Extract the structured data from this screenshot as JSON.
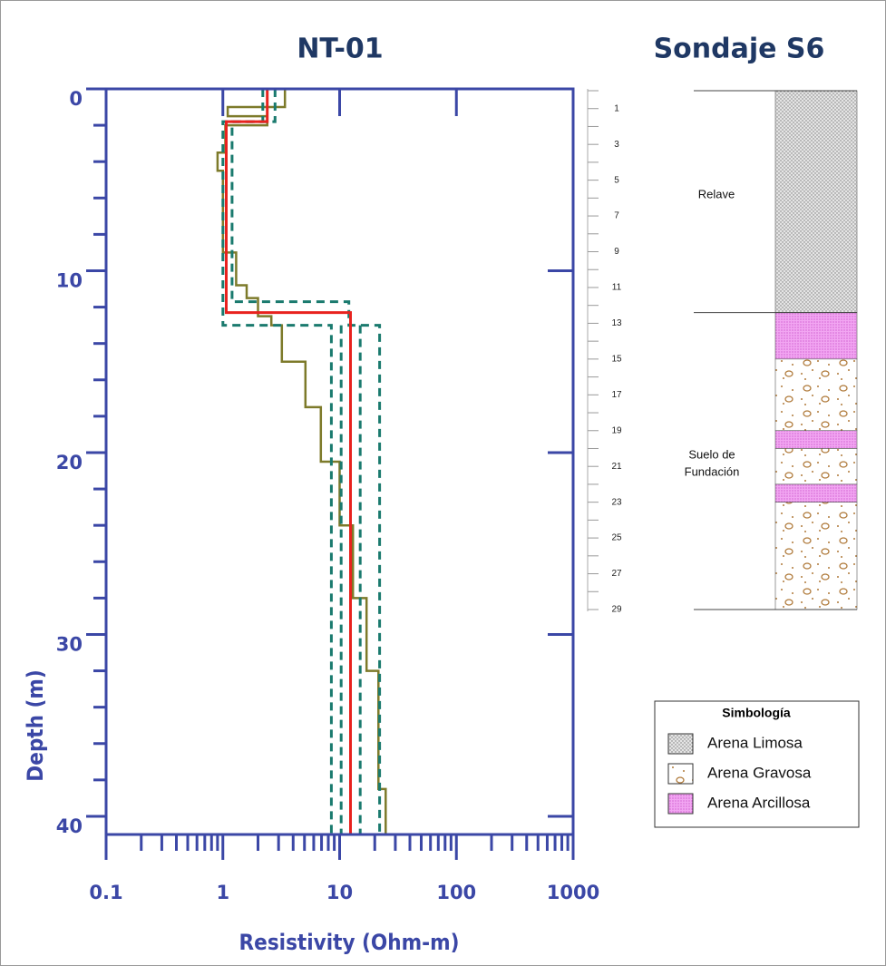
{
  "chart_data": {
    "type": "line",
    "title": "NT-01",
    "xlabel": "Resistivity (Ohm-m)",
    "ylabel": "Depth (m)",
    "xscale": "log",
    "xlim": [
      0.1,
      1000
    ],
    "ylim": [
      0,
      41
    ],
    "y_inverted": true,
    "xticks": [
      0.1,
      1,
      10,
      100,
      1000
    ],
    "xminorticks": [
      0.2,
      0.3,
      0.4,
      0.5,
      0.6,
      0.7,
      0.8,
      0.9,
      2,
      3,
      4,
      5,
      6,
      7,
      8,
      9,
      20,
      30,
      40,
      50,
      60,
      70,
      80,
      90,
      200,
      300,
      400,
      500,
      600,
      700,
      800,
      900
    ],
    "yticks": [
      0,
      10,
      20,
      30,
      40
    ],
    "yminorticks": [
      2,
      4,
      6,
      8,
      12,
      14,
      16,
      18,
      22,
      24,
      26,
      28,
      32,
      34,
      36,
      38
    ],
    "axis_color": "#3b47a6",
    "series": [
      {
        "color": "#7d7a2a",
        "style": "solid",
        "width": 2.5,
        "x": [
          3.4,
          3.4,
          1.1,
          1.1,
          2.4,
          2.4,
          1.05,
          1.05,
          0.9,
          0.9,
          1.0,
          1.0,
          1.3,
          1.3,
          1.6,
          1.6,
          2.0,
          2.0,
          2.6,
          2.6,
          3.2,
          3.2,
          5.1,
          5.1,
          6.9,
          6.9,
          10,
          10,
          13,
          13,
          17,
          17,
          21.5,
          21.5,
          24.8,
          24.8
        ],
        "values": [
          0,
          1,
          1,
          1.5,
          1.5,
          2,
          2,
          3.5,
          3.5,
          4.5,
          4.5,
          9,
          9,
          10.8,
          10.8,
          11.5,
          11.5,
          12.5,
          12.5,
          13,
          13,
          15,
          15,
          17.5,
          17.5,
          20.5,
          20.5,
          24,
          24,
          28,
          28,
          32,
          32,
          38.5,
          38.5,
          41
        ]
      },
      {
        "color": "#1a7a6e",
        "style": "dashed",
        "width": 3,
        "x": [
          2.2,
          2.2,
          1.0,
          1.0,
          8.5,
          8.5
        ],
        "values": [
          0,
          1.8,
          1.8,
          13,
          13,
          41
        ]
      },
      {
        "color": "#1a7a6e",
        "style": "dashed",
        "width": 3,
        "x": [
          2.8,
          2.8,
          1.2,
          1.2,
          12,
          12,
          22,
          22
        ],
        "values": [
          0,
          1.8,
          1.8,
          11.7,
          11.7,
          13,
          13,
          41
        ]
      },
      {
        "color": "#1a7a6e",
        "style": "dashed",
        "width": 3,
        "x": [
          10.3,
          10.3
        ],
        "values": [
          13,
          41
        ]
      },
      {
        "color": "#1a7a6e",
        "style": "dashed",
        "width": 3,
        "x": [
          15,
          15
        ],
        "values": [
          13,
          41
        ]
      },
      {
        "color": "#e8221e",
        "style": "solid",
        "width": 3,
        "x": [
          2.4,
          2.4,
          1.07,
          1.07,
          12.4,
          12.4
        ],
        "values": [
          0,
          1.8,
          1.8,
          12.3,
          12.3,
          41
        ]
      }
    ]
  },
  "borehole": {
    "title": "Sondaje S6",
    "depth_lim": [
      0,
      29
    ],
    "scale_labels": [
      1,
      3,
      5,
      7,
      9,
      11,
      13,
      15,
      17,
      19,
      21,
      23,
      25,
      27,
      29
    ],
    "scale_ticks": [
      0,
      1,
      2,
      3,
      4,
      5,
      6,
      7,
      8,
      9,
      10,
      11,
      12,
      13,
      14,
      15,
      16,
      17,
      18,
      19,
      20,
      21,
      22,
      23,
      24,
      25,
      26,
      27,
      28,
      29
    ],
    "layers": [
      {
        "top": 0,
        "bottom": 12.4,
        "material": "Arena Limosa"
      },
      {
        "top": 12.4,
        "bottom": 15,
        "material": "Arena Arcillosa"
      },
      {
        "top": 15,
        "bottom": 19,
        "material": "Arena Gravosa"
      },
      {
        "top": 19,
        "bottom": 20,
        "material": "Arena Arcillosa"
      },
      {
        "top": 20,
        "bottom": 22,
        "material": "Arena Gravosa"
      },
      {
        "top": 22,
        "bottom": 23,
        "material": "Arena Arcillosa"
      },
      {
        "top": 23,
        "bottom": 29,
        "material": "Arena Gravosa"
      }
    ],
    "zone_boundaries": [
      0,
      12.4,
      29
    ],
    "zone_labels": [
      "Relave",
      [
        "Suelo de",
        "Fundación"
      ]
    ],
    "legend": {
      "title": "Simbología",
      "items": [
        "Arena Limosa",
        "Arena Gravosa",
        "Arena Arcillosa"
      ]
    }
  }
}
